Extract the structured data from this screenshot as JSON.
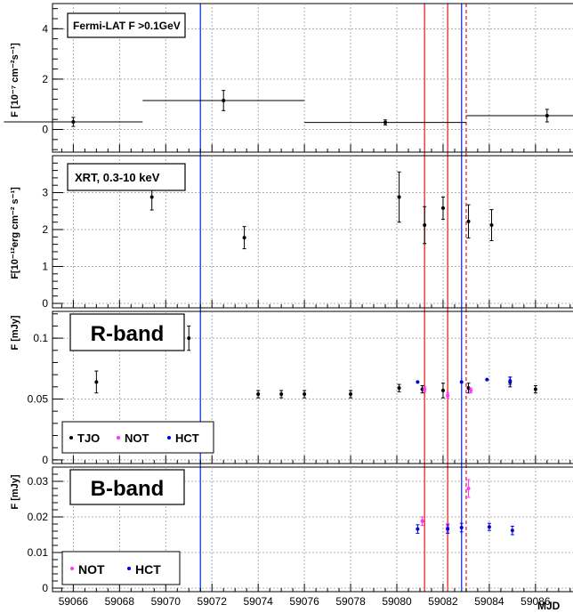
{
  "chart_data": [
    {
      "type": "scatter",
      "panel": "fermi",
      "label": "Fermi-LAT F >0.1GeV",
      "ylabel": "F [10⁻⁷ cm⁻²s⁻¹]",
      "ylim": [
        -0.9,
        5.0
      ],
      "yticks": [
        0,
        2,
        4
      ],
      "grid": true,
      "series": [
        {
          "color": "#000000",
          "points": [
            {
              "x": 59066.0,
              "xerr": 3.0,
              "y": 0.3,
              "yerr": 0.18
            },
            {
              "x": 59072.5,
              "xerr": 3.5,
              "y": 1.15,
              "yerr": 0.4
            },
            {
              "x": 59079.5,
              "xerr": 3.5,
              "y": 0.28,
              "yerr": 0.1
            },
            {
              "x": 59086.5,
              "xerr": 3.5,
              "y": 0.55,
              "yerr": 0.25
            }
          ]
        }
      ]
    },
    {
      "type": "scatter",
      "panel": "xrt",
      "label": "XRT, 0.3-10 keV",
      "ylabel": "F[10⁻¹²erg cm⁻² s⁻¹]",
      "ylim": [
        -0.12,
        4.0
      ],
      "yticks": [
        0,
        1,
        2,
        3
      ],
      "grid": true,
      "series": [
        {
          "color": "#000000",
          "points": [
            {
              "x": 59069.4,
              "y": 2.88,
              "yerr": 0.35
            },
            {
              "x": 59073.4,
              "y": 1.78,
              "yerr": 0.3
            },
            {
              "x": 59080.1,
              "y": 2.88,
              "yerr": 0.68
            },
            {
              "x": 59081.2,
              "y": 2.12,
              "yerr": 0.5
            },
            {
              "x": 59082.0,
              "y": 2.58,
              "yerr": 0.3
            },
            {
              "x": 59083.1,
              "y": 2.22,
              "yerr": 0.45
            },
            {
              "x": 59084.1,
              "y": 2.12,
              "yerr": 0.42
            }
          ]
        }
      ]
    },
    {
      "type": "scatter",
      "panel": "rband",
      "label": "R-band",
      "ylabel": "F [mJy]",
      "ylim": [
        -0.003,
        0.122
      ],
      "yticks": [
        0,
        0.05,
        0.1
      ],
      "grid": true,
      "legend": {
        "placement": "bottom-left",
        "items": [
          {
            "name": "TJO",
            "color": "#000000"
          },
          {
            "name": "NOT",
            "color": "#ff33ff"
          },
          {
            "name": "HCT",
            "color": "#0000dd"
          }
        ]
      },
      "series": [
        {
          "name": "TJO",
          "color": "#000000",
          "points": [
            {
              "x": 59067.0,
              "y": 0.064,
              "yerr": 0.009
            },
            {
              "x": 59071.0,
              "y": 0.1,
              "yerr": 0.01
            },
            {
              "x": 59074.0,
              "y": 0.054,
              "yerr": 0.003
            },
            {
              "x": 59075.0,
              "y": 0.054,
              "yerr": 0.003
            },
            {
              "x": 59076.0,
              "y": 0.054,
              "yerr": 0.003
            },
            {
              "x": 59078.0,
              "y": 0.054,
              "yerr": 0.003
            },
            {
              "x": 59080.1,
              "y": 0.059,
              "yerr": 0.003
            },
            {
              "x": 59081.1,
              "y": 0.058,
              "yerr": 0.003
            },
            {
              "x": 59082.0,
              "y": 0.057,
              "yerr": 0.006
            },
            {
              "x": 59083.1,
              "y": 0.059,
              "yerr": 0.004
            },
            {
              "x": 59084.9,
              "y": 0.064,
              "yerr": 0.004
            },
            {
              "x": 59086.0,
              "y": 0.058,
              "yerr": 0.003
            }
          ]
        },
        {
          "name": "NOT",
          "color": "#ff33ff",
          "points": [
            {
              "x": 59081.2,
              "y": 0.058,
              "yerr": 0.002
            },
            {
              "x": 59082.2,
              "y": 0.053,
              "yerr": 0.002
            },
            {
              "x": 59083.2,
              "y": 0.057,
              "yerr": 0.002
            }
          ]
        },
        {
          "name": "HCT",
          "color": "#0000dd",
          "points": [
            {
              "x": 59080.9,
              "y": 0.064,
              "yerr": 0.0
            },
            {
              "x": 59082.8,
              "y": 0.064,
              "yerr": 0.0
            },
            {
              "x": 59083.9,
              "y": 0.066,
              "yerr": 0.0
            },
            {
              "x": 59084.9,
              "y": 0.065,
              "yerr": 0.003
            }
          ]
        }
      ]
    },
    {
      "type": "scatter",
      "panel": "bband",
      "label": "B-band",
      "ylabel": "F [mJy]",
      "ylim": [
        -0.001,
        0.034
      ],
      "yticks": [
        0,
        0.01,
        0.02,
        0.03
      ],
      "grid": true,
      "legend": {
        "placement": "bottom-left",
        "items": [
          {
            "name": "NOT",
            "color": "#ff33ff"
          },
          {
            "name": "HCT",
            "color": "#0000dd"
          }
        ]
      },
      "series": [
        {
          "name": "NOT",
          "color": "#ff33ff",
          "points": [
            {
              "x": 59081.1,
              "y": 0.0188,
              "yerr": 0.0012
            },
            {
              "x": 59082.2,
              "y": 0.017,
              "yerr": 0.0012
            },
            {
              "x": 59083.1,
              "y": 0.028,
              "yerr": 0.0025
            }
          ]
        },
        {
          "name": "HCT",
          "color": "#0000dd",
          "points": [
            {
              "x": 59080.9,
              "y": 0.0166,
              "yerr": 0.0012
            },
            {
              "x": 59082.2,
              "y": 0.0166,
              "yerr": 0.0012
            },
            {
              "x": 59082.8,
              "y": 0.017,
              "yerr": 0.0012
            },
            {
              "x": 59084.0,
              "y": 0.0172,
              "yerr": 0.001
            },
            {
              "x": 59085.0,
              "y": 0.0162,
              "yerr": 0.0012
            }
          ]
        }
      ]
    }
  ],
  "x_axis": {
    "label": "MJD",
    "xlim": [
      59065.1,
      59088.2
    ],
    "ticks": [
      "59066",
      "59068",
      "59070",
      "59072",
      "59074",
      "59076",
      "59078",
      "59080",
      "59082",
      "59084",
      "59086"
    ],
    "tick_values": [
      59066,
      59068,
      59070,
      59072,
      59074,
      59076,
      59078,
      59080,
      59082,
      59084,
      59086
    ]
  },
  "vertical_markers": [
    {
      "x": 59071.5,
      "color": "#2244ee",
      "style": "solid"
    },
    {
      "x": 59081.2,
      "color": "#ee3333",
      "style": "solid"
    },
    {
      "x": 59082.2,
      "color": "#ee3333",
      "style": "solid"
    },
    {
      "x": 59082.8,
      "color": "#2244ee",
      "style": "solid"
    },
    {
      "x": 59083.0,
      "color": "#ee3333",
      "style": "dashed"
    }
  ]
}
